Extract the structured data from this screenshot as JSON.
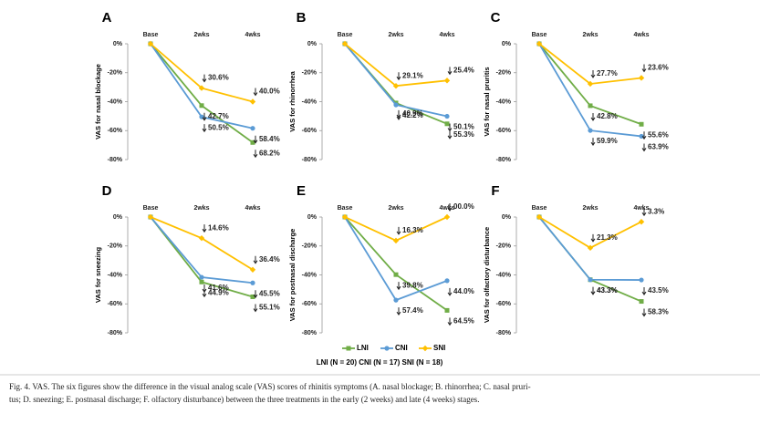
{
  "legend": [
    {
      "name": "LNI",
      "color": "#70ad47"
    },
    {
      "name": "CNI",
      "color": "#5b9bd5"
    },
    {
      "name": "SNI",
      "color": "#ffc000"
    }
  ],
  "legend_note": "LNI (N = 20) CNI (N = 17) SNI (N = 18)",
  "caption": [
    "Fig. 4. VAS. The six figures show the difference in the visual analog scale (VAS) scores of rhinitis symptoms (A. nasal blockage; B. rhinorrhea; C. nasal pruri-",
    "tus; D. sneezing; E. postnasal discharge; F. olfactory disturbance) between the three treatments in the early (2 weeks) and late (4 weeks) stages."
  ],
  "chart_data": [
    {
      "type": "line",
      "panel": "A",
      "y_label": "VAS for nasal blockage",
      "categories": [
        "Base",
        "2wks",
        "4wks"
      ],
      "ylim": [
        -80,
        0
      ],
      "yticks": [
        {
          "value": 0,
          "label": "0%"
        },
        {
          "value": -20,
          "label": "-20%"
        },
        {
          "value": -40,
          "label": "-40%"
        },
        {
          "value": -60,
          "label": "-60%"
        },
        {
          "value": -80,
          "label": "-80%"
        }
      ],
      "series": [
        {
          "values": [
            0,
            -42.7,
            -68.2
          ],
          "value_labels": [
            null,
            "42.7%",
            "68.2%"
          ]
        },
        {
          "values": [
            0,
            -50.5,
            -58.4
          ],
          "value_labels": [
            null,
            "50.5%",
            "58.4%"
          ]
        },
        {
          "values": [
            0,
            -30.6,
            -40.0
          ],
          "value_labels": [
            null,
            "30.6%",
            "40.0%"
          ]
        }
      ]
    },
    {
      "type": "line",
      "panel": "B",
      "y_label": "VAS for rhinorrhea",
      "categories": [
        "Base",
        "2wks",
        "4wks"
      ],
      "ylim": [
        -80,
        0
      ],
      "yticks": [
        {
          "value": 0,
          "label": "0%"
        },
        {
          "value": -20,
          "label": "-20%"
        },
        {
          "value": -40,
          "label": "-40%"
        },
        {
          "value": -60,
          "label": "-60%"
        },
        {
          "value": -80,
          "label": "-80%"
        }
      ],
      "series": [
        {
          "values": [
            0,
            -40.9,
            -55.3
          ],
          "value_labels": [
            null,
            "40.9%",
            "55.3%"
          ]
        },
        {
          "values": [
            0,
            -42.2,
            -50.1
          ],
          "value_labels": [
            null,
            "42.2%",
            "50.1%"
          ]
        },
        {
          "values": [
            0,
            -29.1,
            -25.4
          ],
          "value_labels": [
            null,
            "29.1%",
            "25.4%"
          ]
        }
      ]
    },
    {
      "type": "line",
      "panel": "C",
      "y_label": "VAS for nasal pruritis",
      "categories": [
        "Base",
        "2wks",
        "4wks"
      ],
      "ylim": [
        -80,
        0
      ],
      "yticks": [
        {
          "value": 0,
          "label": "0%"
        },
        {
          "value": -20,
          "label": "-20%"
        },
        {
          "value": -40,
          "label": "-40%"
        },
        {
          "value": -60,
          "label": "-60%"
        },
        {
          "value": -80,
          "label": "-80%"
        }
      ],
      "series": [
        {
          "values": [
            0,
            -42.8,
            -55.6
          ],
          "value_labels": [
            null,
            "42.8%",
            "55.6%"
          ]
        },
        {
          "values": [
            0,
            -59.9,
            -63.9
          ],
          "value_labels": [
            null,
            "59.9%",
            "63.9%"
          ]
        },
        {
          "values": [
            0,
            -27.7,
            -23.6
          ],
          "value_labels": [
            null,
            "27.7%",
            "23.6%"
          ]
        }
      ]
    },
    {
      "type": "line",
      "panel": "D",
      "y_label": "VAS for sneezing",
      "categories": [
        "Base",
        "2wks",
        "4wks"
      ],
      "ylim": [
        -80,
        0
      ],
      "yticks": [
        {
          "value": 0,
          "label": "0%"
        },
        {
          "value": -20,
          "label": "-20%"
        },
        {
          "value": -40,
          "label": "-40%"
        },
        {
          "value": -60,
          "label": "-60%"
        },
        {
          "value": -80,
          "label": "-80%"
        }
      ],
      "series": [
        {
          "values": [
            0,
            -44.9,
            -55.1
          ],
          "value_labels": [
            null,
            "44.9%",
            "55.1%"
          ]
        },
        {
          "values": [
            0,
            -41.6,
            -45.5
          ],
          "value_labels": [
            null,
            "41.6%",
            "45.5%"
          ]
        },
        {
          "values": [
            0,
            -14.6,
            -36.4
          ],
          "value_labels": [
            null,
            "14.6%",
            "36.4%"
          ]
        }
      ]
    },
    {
      "type": "line",
      "panel": "E",
      "y_label": "VAS for postnasal discharge",
      "categories": [
        "Base",
        "2wks",
        "4wks"
      ],
      "ylim": [
        -80,
        0
      ],
      "yticks": [
        {
          "value": 0,
          "label": "0%"
        },
        {
          "value": -20,
          "label": "-20%"
        },
        {
          "value": -40,
          "label": "-40%"
        },
        {
          "value": -60,
          "label": "-60%"
        },
        {
          "value": -80,
          "label": "-80%"
        }
      ],
      "series": [
        {
          "values": [
            0,
            -39.8,
            -64.5
          ],
          "value_labels": [
            null,
            "39.8%",
            "64.5%"
          ]
        },
        {
          "values": [
            0,
            -57.4,
            -44.0
          ],
          "value_labels": [
            null,
            "57.4%",
            "44.0%"
          ]
        },
        {
          "values": [
            0,
            -16.3,
            0
          ],
          "value_labels": [
            null,
            "16.3%",
            "00.0%"
          ]
        }
      ]
    },
    {
      "type": "line",
      "panel": "F",
      "y_label": "VAS for olfactory disturbance",
      "categories": [
        "Base",
        "2wks",
        "4wks"
      ],
      "ylim": [
        -80,
        0
      ],
      "yticks": [
        {
          "value": 0,
          "label": "0%"
        },
        {
          "value": -20,
          "label": "-20%"
        },
        {
          "value": -40,
          "label": "-40%"
        },
        {
          "value": -60,
          "label": "-60%"
        },
        {
          "value": -80,
          "label": "-80%"
        }
      ],
      "series": [
        {
          "values": [
            0,
            -43.3,
            -58.3
          ],
          "value_labels": [
            null,
            "43.3%",
            "58.3%"
          ]
        },
        {
          "values": [
            0,
            -43.3,
            -43.5
          ],
          "value_labels": [
            null,
            "43.3%",
            "43.5%"
          ]
        },
        {
          "values": [
            0,
            -21.3,
            -3.3
          ],
          "value_labels": [
            null,
            "21.3%",
            "3.3%"
          ]
        }
      ]
    }
  ]
}
